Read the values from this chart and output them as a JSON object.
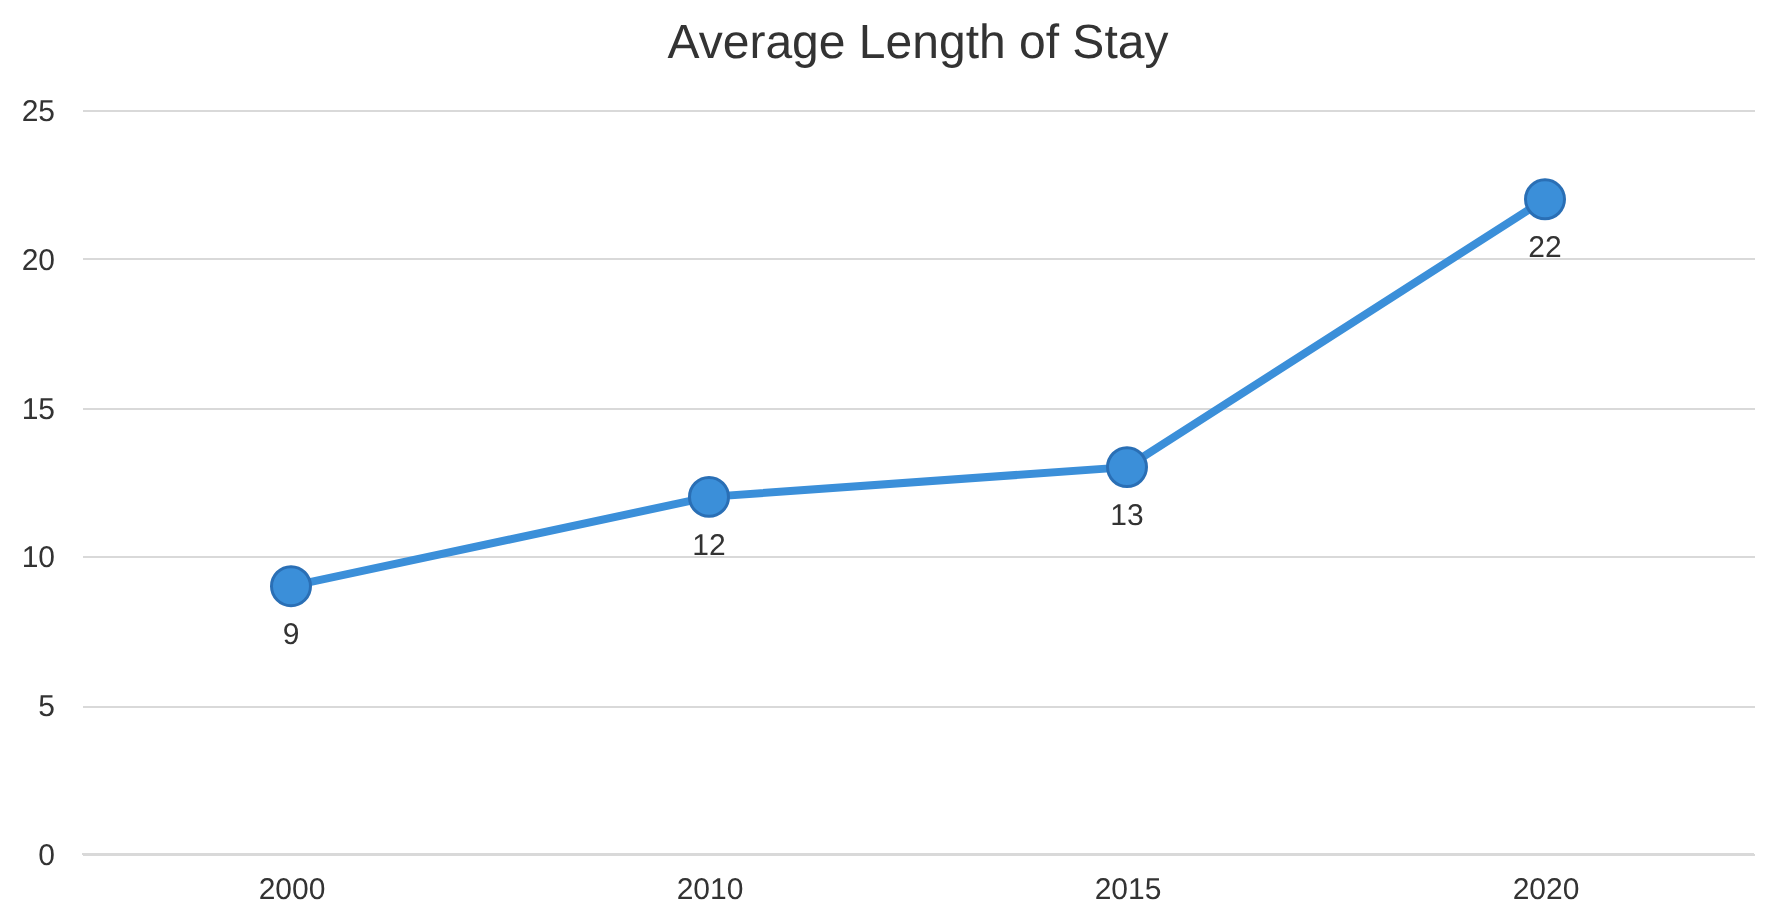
{
  "chart_data": {
    "type": "line",
    "title": "Average Length of Stay",
    "categories": [
      "2000",
      "2010",
      "2015",
      "2020"
    ],
    "series": [
      {
        "color": "#3b8fd9",
        "values": [
          9,
          12,
          13,
          22
        ]
      }
    ],
    "ylim": [
      0,
      25
    ],
    "yticks": [
      0,
      5,
      10,
      15,
      20,
      25
    ],
    "grid": "y",
    "marker": "circle",
    "line_style": "solid",
    "data_labels": true
  }
}
